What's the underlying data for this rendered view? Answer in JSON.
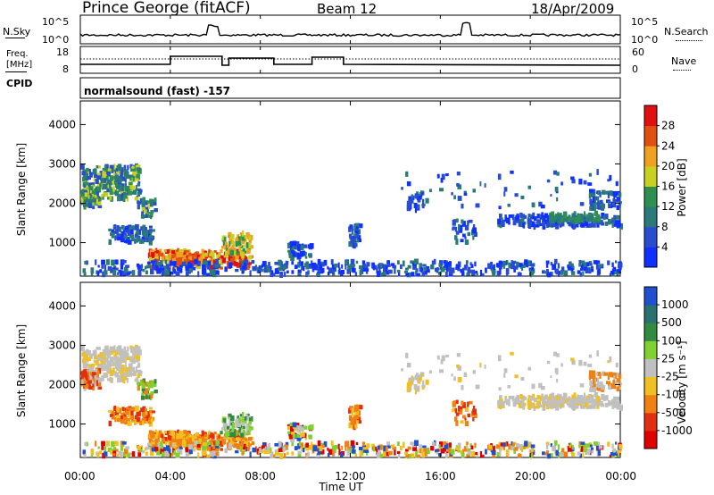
{
  "header": {
    "station": "Prince George (fitACF)",
    "beam": "Beam 12",
    "date": "18/Apr/2009"
  },
  "top_panel": {
    "left_label": "N.Sky",
    "right_label": "N.Search",
    "left_ticks": [
      "10^5",
      "10^0"
    ],
    "right_ticks": [
      "10^5",
      "10^0"
    ]
  },
  "freq_panel": {
    "left_label_line1": "Freq.",
    "left_label_line2": "[MHz]",
    "right_label": "Nave",
    "left_ticks": [
      "18",
      "8"
    ],
    "right_ticks": [
      "60",
      "0"
    ]
  },
  "cpid": {
    "label": "CPID",
    "text": "normalsound (fast) -157"
  },
  "x_axis": {
    "label": "Time UT",
    "ticks": [
      "00:00",
      "04:00",
      "08:00",
      "12:00",
      "16:00",
      "20:00",
      "00:00"
    ]
  },
  "chart_data": [
    {
      "type": "heatmap",
      "title": "",
      "xlabel": "Time UT",
      "ylabel": "Slant Range [km]",
      "x_ticks": [
        "00:00",
        "04:00",
        "08:00",
        "12:00",
        "16:00",
        "20:00",
        "00:00"
      ],
      "y_ticks": [
        "1000",
        "2000",
        "3000",
        "4000"
      ],
      "colorbar": {
        "label": "Power [dB]",
        "ticks": [
          "4",
          "8",
          "12",
          "16",
          "20",
          "24",
          "28"
        ],
        "colors": [
          "#1030ff",
          "#2a4dd0",
          "#2a7a7a",
          "#2e9050",
          "#c8d020",
          "#f0a020",
          "#e05010",
          "#e01010"
        ]
      },
      "features": [
        {
          "time": "00:00-02:30",
          "range_km": "2000-3000",
          "level": "12-20 dB"
        },
        {
          "time": "02:00-08:00",
          "range_km": "400-1300",
          "level": "20-28 dB"
        },
        {
          "time": "16:00-24:00",
          "range_km": "1400-2200",
          "level": "8-12 dB"
        }
      ]
    },
    {
      "type": "heatmap",
      "title": "",
      "xlabel": "Time UT",
      "ylabel": "Slant Range [km]",
      "x_ticks": [
        "00:00",
        "04:00",
        "08:00",
        "12:00",
        "16:00",
        "20:00",
        "00:00"
      ],
      "y_ticks": [
        "1000",
        "2000",
        "3000",
        "4000"
      ],
      "colorbar": {
        "label": "Velocity [m s⁻¹]",
        "ticks": [
          "1000",
          "500",
          "100",
          "25",
          "-25",
          "-100",
          "-500",
          "-1000"
        ],
        "colors": [
          "#2050d0",
          "#2a7070",
          "#308a40",
          "#80d030",
          "#c0c0c0",
          "#f0c020",
          "#f08010",
          "#e03010",
          "#e00000"
        ]
      },
      "features": [
        {
          "time": "00:00-03:00",
          "range_km": "2000-3000",
          "level": "ground scatter (grey)"
        },
        {
          "time": "01:00-07:00",
          "range_km": "400-1500",
          "level": "-100 to -500 m/s"
        },
        {
          "time": "08:00-24:00",
          "range_km": "200-500",
          "level": "mixed"
        }
      ]
    }
  ]
}
